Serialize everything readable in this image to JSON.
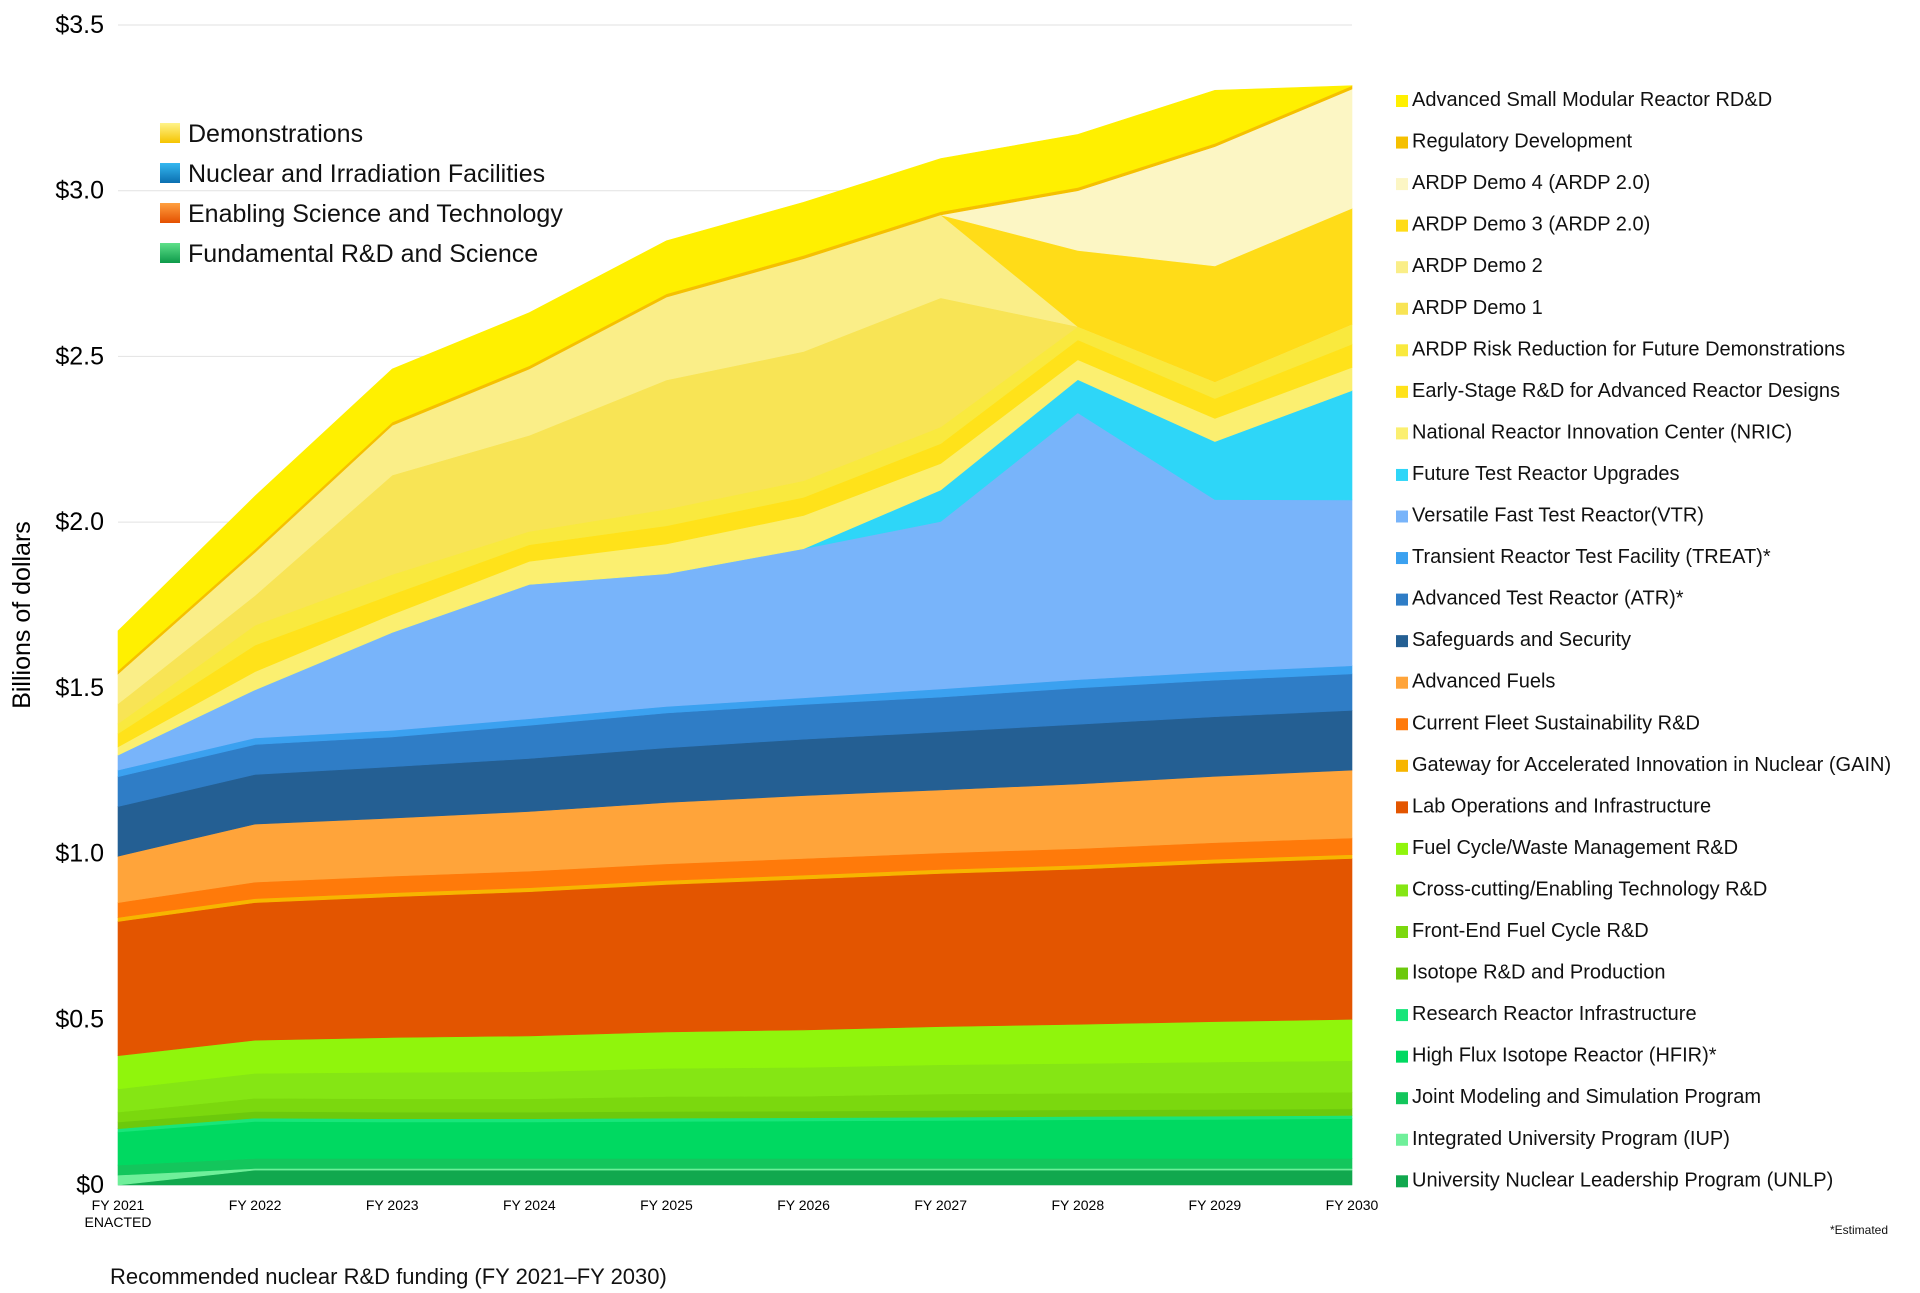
{
  "caption": "Recommended nuclear R&D funding (FY 2021–FY 2030)",
  "footnote": "*Estimated",
  "chart_data": {
    "type": "area",
    "stacked": true,
    "ylabel": "Billions of dollars",
    "ylim": [
      0,
      3.5
    ],
    "yticks": [
      "$0",
      "$0.5",
      "$1.0",
      "$1.5",
      "$2.0",
      "$2.5",
      "$3.0",
      "$3.5"
    ],
    "ytick_values": [
      0,
      0.5,
      1.0,
      1.5,
      2.0,
      2.5,
      3.0,
      3.5
    ],
    "grid": "horizontal",
    "categories": [
      [
        "FY 2021",
        "ENACTED"
      ],
      [
        "FY 2022"
      ],
      [
        "FY 2023"
      ],
      [
        "FY 2024"
      ],
      [
        "FY 2025"
      ],
      [
        "FY 2026"
      ],
      [
        "FY 2027"
      ],
      [
        "FY 2028"
      ],
      [
        "FY 2029"
      ],
      [
        "FY 2030"
      ]
    ],
    "legend_position": "right",
    "groups": [
      {
        "name": "Demonstrations",
        "colors": [
          "#FFF38A",
          "#F5C400"
        ]
      },
      {
        "name": "Nuclear and Irradiation Facilities",
        "colors": [
          "#35B8F0",
          "#0B6FB0"
        ]
      },
      {
        "name": "Enabling Science and Technology",
        "colors": [
          "#FFA040",
          "#E45000"
        ]
      },
      {
        "name": "Fundamental R&D and Science",
        "colors": [
          "#5FE08A",
          "#0E9A4A"
        ]
      }
    ],
    "series": [
      {
        "name": "University Nuclear Leadership Program (UNLP)",
        "color": "#11A84E",
        "values": [
          0.0,
          0.045,
          0.045,
          0.045,
          0.045,
          0.045,
          0.045,
          0.045,
          0.045,
          0.045
        ]
      },
      {
        "name": "Integrated University Program (IUP)",
        "color": "#6FEF9A",
        "values": [
          0.03,
          0.005,
          0.005,
          0.005,
          0.005,
          0.005,
          0.005,
          0.005,
          0.005,
          0.005
        ]
      },
      {
        "name": "Joint Modeling and Simulation Program",
        "color": "#13C65C",
        "values": [
          0.03,
          0.03,
          0.03,
          0.03,
          0.03,
          0.03,
          0.03,
          0.03,
          0.03,
          0.03
        ]
      },
      {
        "name": "High Flux Isotope Reactor (HFIR)*",
        "color": "#00D961",
        "values": [
          0.1,
          0.112,
          0.11,
          0.11,
          0.112,
          0.113,
          0.115,
          0.117,
          0.118,
          0.12
        ]
      },
      {
        "name": "Research Reactor Infrastructure",
        "color": "#18E57A",
        "values": [
          0.01,
          0.01,
          0.01,
          0.01,
          0.01,
          0.01,
          0.01,
          0.01,
          0.01,
          0.01
        ]
      },
      {
        "name": "Isotope R&D and Production",
        "color": "#6CC90C",
        "values": [
          0.02,
          0.02,
          0.02,
          0.02,
          0.02,
          0.02,
          0.02,
          0.02,
          0.02,
          0.02
        ]
      },
      {
        "name": "Front-End Fuel Cycle R&D",
        "color": "#7BD80E",
        "values": [
          0.03,
          0.04,
          0.04,
          0.04,
          0.045,
          0.045,
          0.05,
          0.05,
          0.05,
          0.05
        ]
      },
      {
        "name": "Cross-cutting/Enabling Technology R&D",
        "color": "#85E614",
        "values": [
          0.07,
          0.075,
          0.08,
          0.082,
          0.085,
          0.087,
          0.088,
          0.09,
          0.093,
          0.095
        ]
      },
      {
        "name": "Fuel Cycle/Waste Management R&D",
        "color": "#90F50C",
        "values": [
          0.1,
          0.1,
          0.105,
          0.108,
          0.11,
          0.113,
          0.115,
          0.118,
          0.122,
          0.125
        ]
      },
      {
        "name": "Lab Operations and Infrastructure",
        "color": "#E35500",
        "values": [
          0.405,
          0.415,
          0.425,
          0.435,
          0.445,
          0.455,
          0.462,
          0.468,
          0.478,
          0.485
        ]
      },
      {
        "name": "Gateway for Accelerated Innovation in Nuclear (GAIN)",
        "color": "#F7B500",
        "values": [
          0.012,
          0.012,
          0.012,
          0.012,
          0.012,
          0.012,
          0.012,
          0.012,
          0.012,
          0.012
        ]
      },
      {
        "name": "Current Fleet Sustainability R&D",
        "color": "#FF7A0A",
        "values": [
          0.045,
          0.05,
          0.05,
          0.05,
          0.05,
          0.05,
          0.05,
          0.05,
          0.05,
          0.05
        ]
      },
      {
        "name": "Advanced Fuels",
        "color": "#FFA43A",
        "values": [
          0.14,
          0.175,
          0.175,
          0.18,
          0.185,
          0.19,
          0.19,
          0.195,
          0.2,
          0.205
        ]
      },
      {
        "name": "Safeguards and Security",
        "color": "#245F93",
        "values": [
          0.15,
          0.15,
          0.155,
          0.16,
          0.165,
          0.17,
          0.175,
          0.18,
          0.18,
          0.18
        ]
      },
      {
        "name": "Advanced Test Reactor (ATR)*",
        "color": "#2F7DC6",
        "values": [
          0.09,
          0.09,
          0.09,
          0.1,
          0.105,
          0.105,
          0.105,
          0.11,
          0.11,
          0.11
        ]
      },
      {
        "name": "Transient Reactor Test Facility (TREAT)*",
        "color": "#3BA1F0",
        "values": [
          0.02,
          0.02,
          0.02,
          0.02,
          0.02,
          0.02,
          0.025,
          0.025,
          0.025,
          0.025
        ]
      },
      {
        "name": "Versatile Fast Test Reactor(VTR)",
        "color": "#78B4FA",
        "values": [
          0.045,
          0.145,
          0.295,
          0.405,
          0.4,
          0.45,
          0.505,
          0.805,
          0.52,
          0.5
        ]
      },
      {
        "name": "Future Test Reactor Upgrades",
        "color": "#2ED6F8",
        "values": [
          0.0,
          0.0,
          0.0,
          0.0,
          0.0,
          0.0,
          0.095,
          0.1,
          0.175,
          0.33
        ]
      },
      {
        "name": "National Reactor Innovation Center (NRIC)",
        "color": "#FBEF70",
        "values": [
          0.025,
          0.055,
          0.055,
          0.07,
          0.09,
          0.1,
          0.08,
          0.06,
          0.07,
          0.07
        ]
      },
      {
        "name": "Early-Stage R&D for Advanced Reactor Designs",
        "color": "#FFE21A",
        "values": [
          0.04,
          0.08,
          0.06,
          0.05,
          0.055,
          0.055,
          0.06,
          0.06,
          0.06,
          0.07
        ]
      },
      {
        "name": "ARDP Risk Reduction for Future Demonstrations",
        "color": "#F9E93E",
        "values": [
          0.03,
          0.06,
          0.06,
          0.04,
          0.05,
          0.05,
          0.05,
          0.04,
          0.05,
          0.06
        ]
      },
      {
        "name": "ARDP Demo 1",
        "color": "#F8E455",
        "values": [
          0.06,
          0.09,
          0.3,
          0.29,
          0.39,
          0.39,
          0.39,
          0.0,
          0.0,
          0.0
        ]
      },
      {
        "name": "ARDP Demo 2",
        "color": "#FAEE88",
        "values": [
          0.09,
          0.13,
          0.15,
          0.2,
          0.25,
          0.28,
          0.25,
          0.0,
          0.0,
          0.0
        ]
      },
      {
        "name": "ARDP Demo 3 (ARDP 2.0)",
        "color": "#FFDC18",
        "values": [
          0.0,
          0.0,
          0.0,
          0.0,
          0.0,
          0.0,
          0.0,
          0.23,
          0.35,
          0.35
        ]
      },
      {
        "name": "ARDP Demo 4 (ARDP 2.0)",
        "color": "#FCF6C4",
        "values": [
          0.0,
          0.0,
          0.0,
          0.0,
          0.0,
          0.0,
          0.0,
          0.18,
          0.36,
          0.36
        ]
      },
      {
        "name": "Regulatory Development",
        "color": "#F5C000",
        "values": [
          0.01,
          0.01,
          0.01,
          0.01,
          0.01,
          0.01,
          0.01,
          0.01,
          0.01,
          0.01
        ]
      },
      {
        "name": "Advanced Small Modular Reactor RD&D",
        "color": "#FFF000",
        "values": [
          0.12,
          0.16,
          0.16,
          0.16,
          0.16,
          0.16,
          0.16,
          0.16,
          0.16,
          0.0
        ]
      }
    ]
  }
}
